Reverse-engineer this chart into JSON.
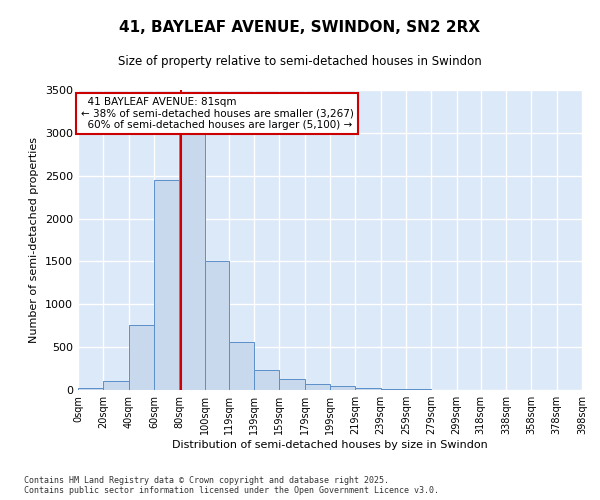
{
  "title": "41, BAYLEAF AVENUE, SWINDON, SN2 2RX",
  "subtitle": "Size of property relative to semi-detached houses in Swindon",
  "xlabel": "Distribution of semi-detached houses by size in Swindon",
  "ylabel": "Number of semi-detached properties",
  "footnote": "Contains HM Land Registry data © Crown copyright and database right 2025.\nContains public sector information licensed under the Open Government Licence v3.0.",
  "property_size": 81,
  "property_label": "41 BAYLEAF AVENUE: 81sqm",
  "pct_smaller": 38,
  "pct_larger": 60,
  "n_smaller": 3267,
  "n_larger": 5100,
  "bar_color": "#c9d9ed",
  "bar_edge_color": "#5b8fc9",
  "redline_color": "#cc0000",
  "annotation_box_edge": "#cc0000",
  "background_color": "#ffffff",
  "plot_bg_color": "#dce9f8",
  "grid_color": "#ffffff",
  "bin_edges": [
    0,
    20,
    40,
    60,
    80,
    100,
    119,
    139,
    159,
    179,
    199,
    219,
    239,
    259,
    279,
    299,
    318,
    338,
    358,
    378,
    398
  ],
  "bin_labels": [
    "0sqm",
    "20sqm",
    "40sqm",
    "60sqm",
    "80sqm",
    "100sqm",
    "119sqm",
    "139sqm",
    "159sqm",
    "179sqm",
    "199sqm",
    "219sqm",
    "239sqm",
    "259sqm",
    "279sqm",
    "299sqm",
    "318sqm",
    "338sqm",
    "358sqm",
    "378sqm",
    "398sqm"
  ],
  "counts": [
    20,
    100,
    760,
    2450,
    3280,
    1500,
    560,
    230,
    130,
    75,
    45,
    25,
    15,
    8,
    5,
    3,
    2,
    1,
    1,
    0
  ],
  "ylim": [
    0,
    3500
  ],
  "yticks": [
    0,
    500,
    1000,
    1500,
    2000,
    2500,
    3000,
    3500
  ]
}
